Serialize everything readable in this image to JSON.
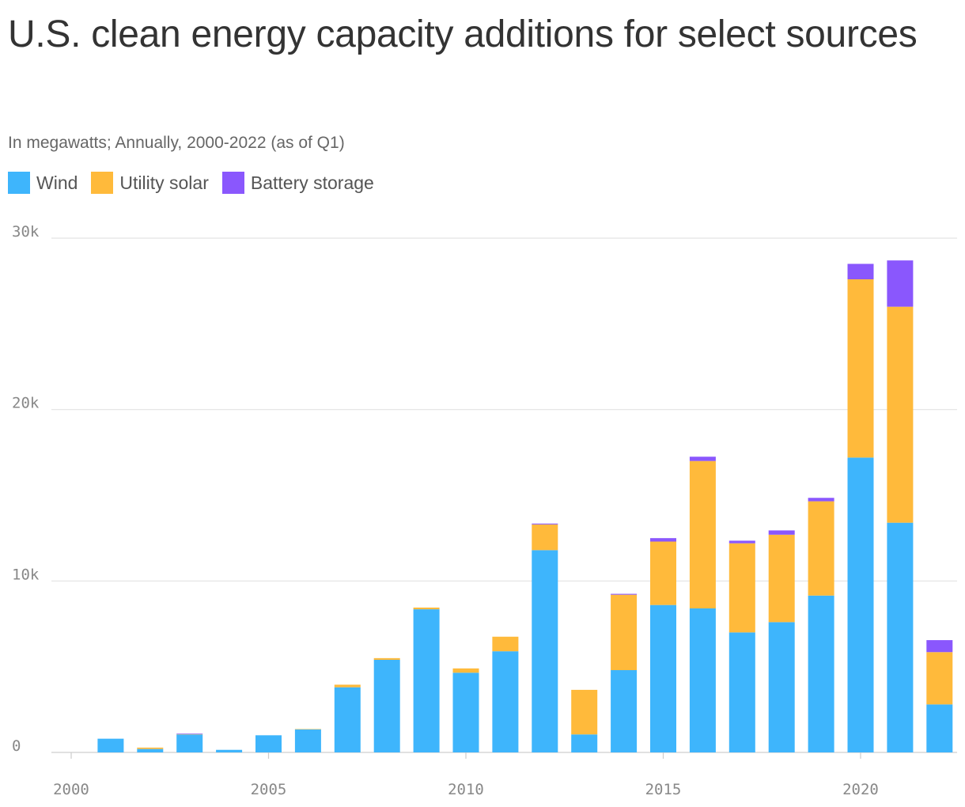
{
  "chart_data": {
    "type": "bar",
    "stacked": true,
    "title": "U.S. clean energy capacity additions for select sources",
    "subtitle": "In megawatts; Annually, 2000-2022 (as of Q1)",
    "x": [
      2001,
      2002,
      2003,
      2004,
      2005,
      2006,
      2007,
      2008,
      2009,
      2010,
      2011,
      2012,
      2013,
      2014,
      2015,
      2016,
      2017,
      2018,
      2019,
      2020,
      2021,
      2022
    ],
    "series": [
      {
        "name": "Wind",
        "color": "#3eb5fc",
        "values": [
          800,
          200,
          1050,
          150,
          1000,
          1350,
          3800,
          5400,
          8350,
          4650,
          5900,
          11800,
          1050,
          4800,
          8600,
          8400,
          7000,
          7600,
          9150,
          17200,
          13400,
          2800
        ]
      },
      {
        "name": "Utility solar",
        "color": "#ffba3b",
        "values": [
          0,
          80,
          20,
          0,
          0,
          10,
          150,
          100,
          100,
          250,
          850,
          1500,
          2600,
          4400,
          3700,
          8600,
          5200,
          5100,
          5500,
          10400,
          12600,
          3050
        ]
      },
      {
        "name": "Battery storage",
        "color": "#8a57fd",
        "values": [
          0,
          0,
          30,
          0,
          0,
          0,
          0,
          0,
          0,
          0,
          0,
          50,
          0,
          50,
          200,
          250,
          150,
          250,
          200,
          900,
          2700,
          700
        ]
      }
    ],
    "xlim": [
      2000,
      2022.5
    ],
    "ylim": [
      0,
      30000
    ],
    "xticks": [
      {
        "value": 2000,
        "label": "2000"
      },
      {
        "value": 2005,
        "label": "2005"
      },
      {
        "value": 2010,
        "label": "2010"
      },
      {
        "value": 2015,
        "label": "2015"
      },
      {
        "value": 2020,
        "label": "2020"
      }
    ],
    "yticks": [
      {
        "value": 0,
        "label": "0"
      },
      {
        "value": 10000,
        "label": "10k"
      },
      {
        "value": 20000,
        "label": "20k"
      },
      {
        "value": 30000,
        "label": "30k"
      }
    ],
    "grid": true,
    "legend": "top-left"
  }
}
